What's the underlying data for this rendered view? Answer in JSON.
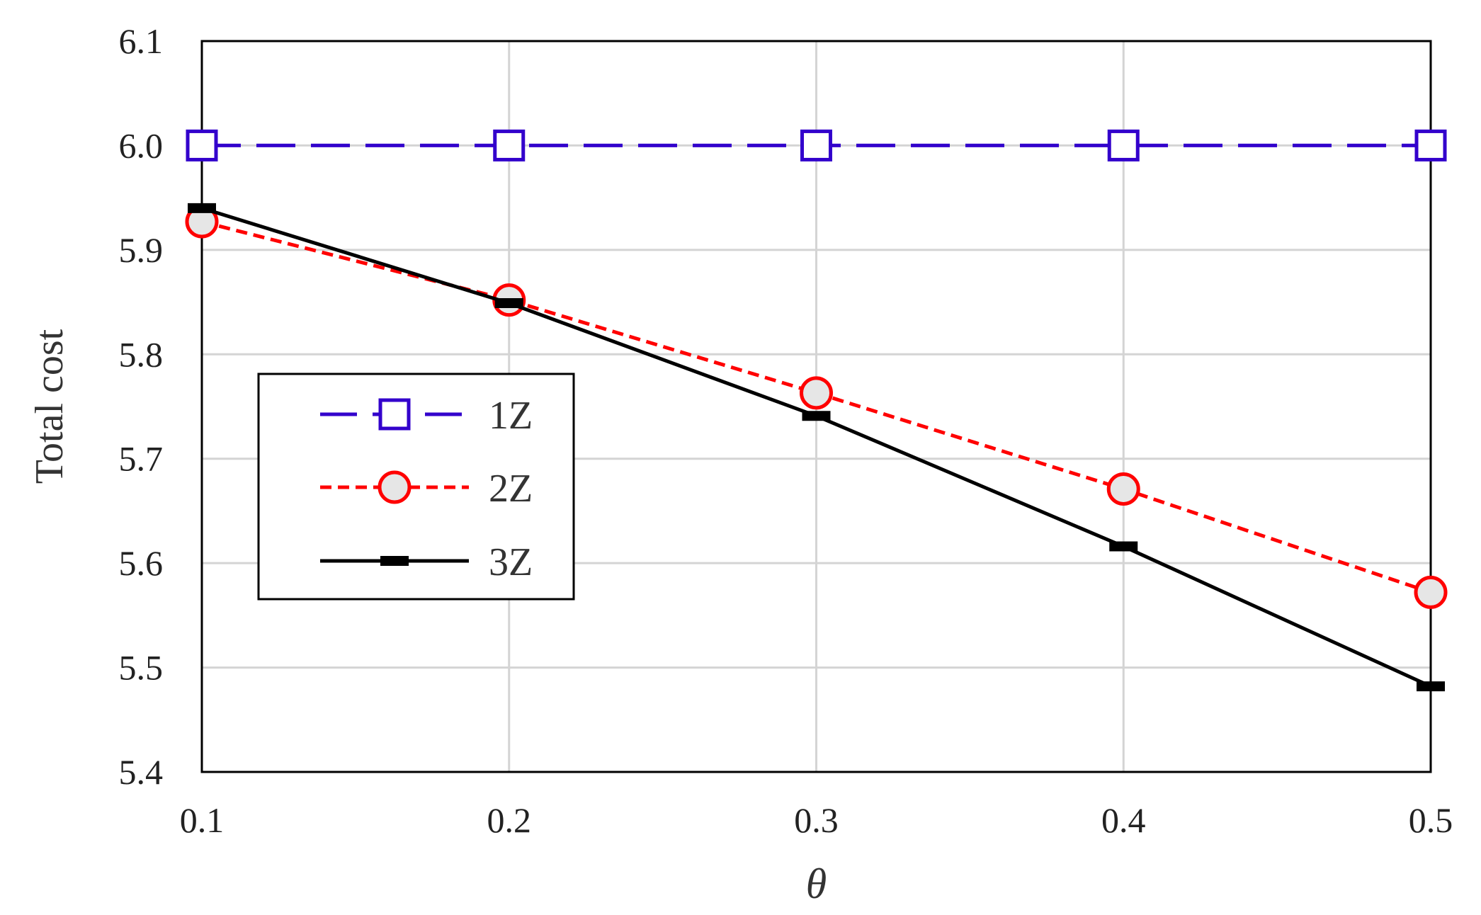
{
  "chart_data": {
    "type": "line",
    "xlabel": "θ",
    "ylabel": "Total cost",
    "x": [
      0.1,
      0.2,
      0.3,
      0.4,
      0.5
    ],
    "x_tick_labels": [
      "0.1",
      "0.2",
      "0.3",
      "0.4",
      "0.5"
    ],
    "xlim": [
      0.1,
      0.5
    ],
    "ylim": [
      5.4,
      6.1
    ],
    "y_ticks": [
      5.4,
      5.5,
      5.6,
      5.7,
      5.8,
      5.9,
      6.0,
      6.1
    ],
    "y_tick_labels": [
      "5.4",
      "5.5",
      "5.6",
      "5.7",
      "5.8",
      "5.9",
      "6.0",
      "6.1"
    ],
    "grid": true,
    "legend_position": "center-left",
    "series": [
      {
        "name": "1Z",
        "values": [
          6.0,
          6.0,
          6.0,
          6.0,
          6.0
        ],
        "color": "#3300cc",
        "line_style": "long-dash",
        "marker": "open-square"
      },
      {
        "name": "2Z",
        "values": [
          5.927,
          5.852,
          5.763,
          5.671,
          5.572
        ],
        "color": "#ff0000",
        "line_style": "short-dash",
        "marker": "open-circle"
      },
      {
        "name": "3Z",
        "values": [
          5.94,
          5.849,
          5.741,
          5.616,
          5.482
        ],
        "color": "#000000",
        "line_style": "solid",
        "marker": "dash"
      }
    ]
  }
}
